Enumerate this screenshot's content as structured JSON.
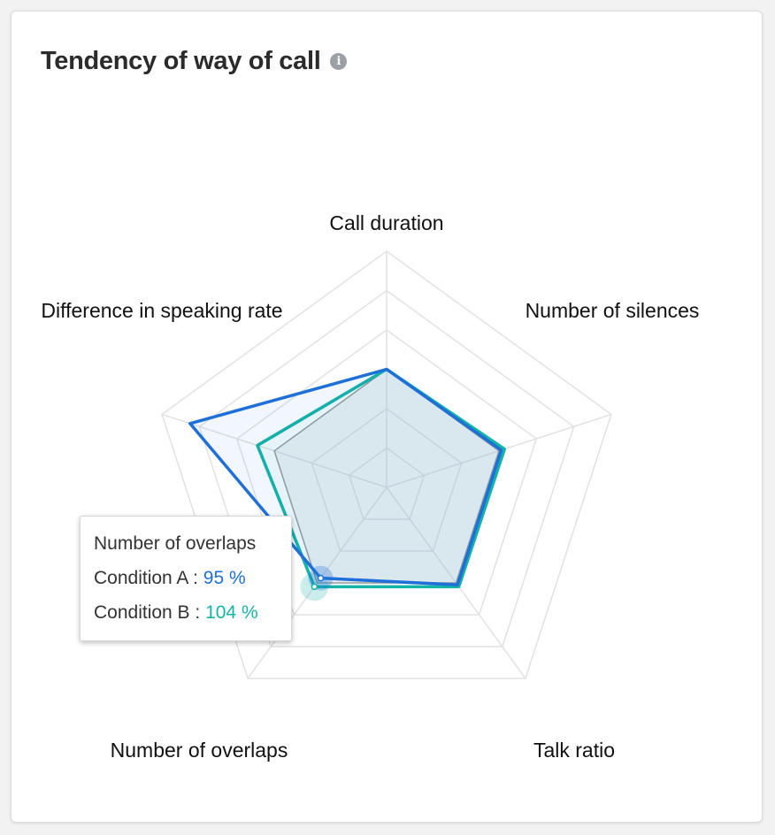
{
  "card": {
    "title": "Tendency of way of call",
    "info_icon": "info-icon"
  },
  "chart_data": {
    "type": "radar",
    "axes": [
      "Call duration",
      "Number of silences",
      "Talk ratio",
      "Number of overlaps",
      "Difference in speaking rate"
    ],
    "rmax": 200,
    "rings": 6,
    "series": [
      {
        "name": "Condition A",
        "color": "#1f6fd8",
        "values": [
          100,
          102,
          102,
          95,
          175
        ]
      },
      {
        "name": "Condition B",
        "color": "#14b3a8",
        "values": [
          100,
          105,
          104,
          104,
          115
        ]
      },
      {
        "name": "",
        "color": "#9e9e9e",
        "values": [
          100,
          100,
          100,
          100,
          100
        ]
      }
    ]
  },
  "tooltip": {
    "title": "Number of overlaps",
    "a_label": "Condition A : ",
    "a_value": "95 %",
    "b_label": "Condition B : ",
    "b_value": "104 %"
  }
}
